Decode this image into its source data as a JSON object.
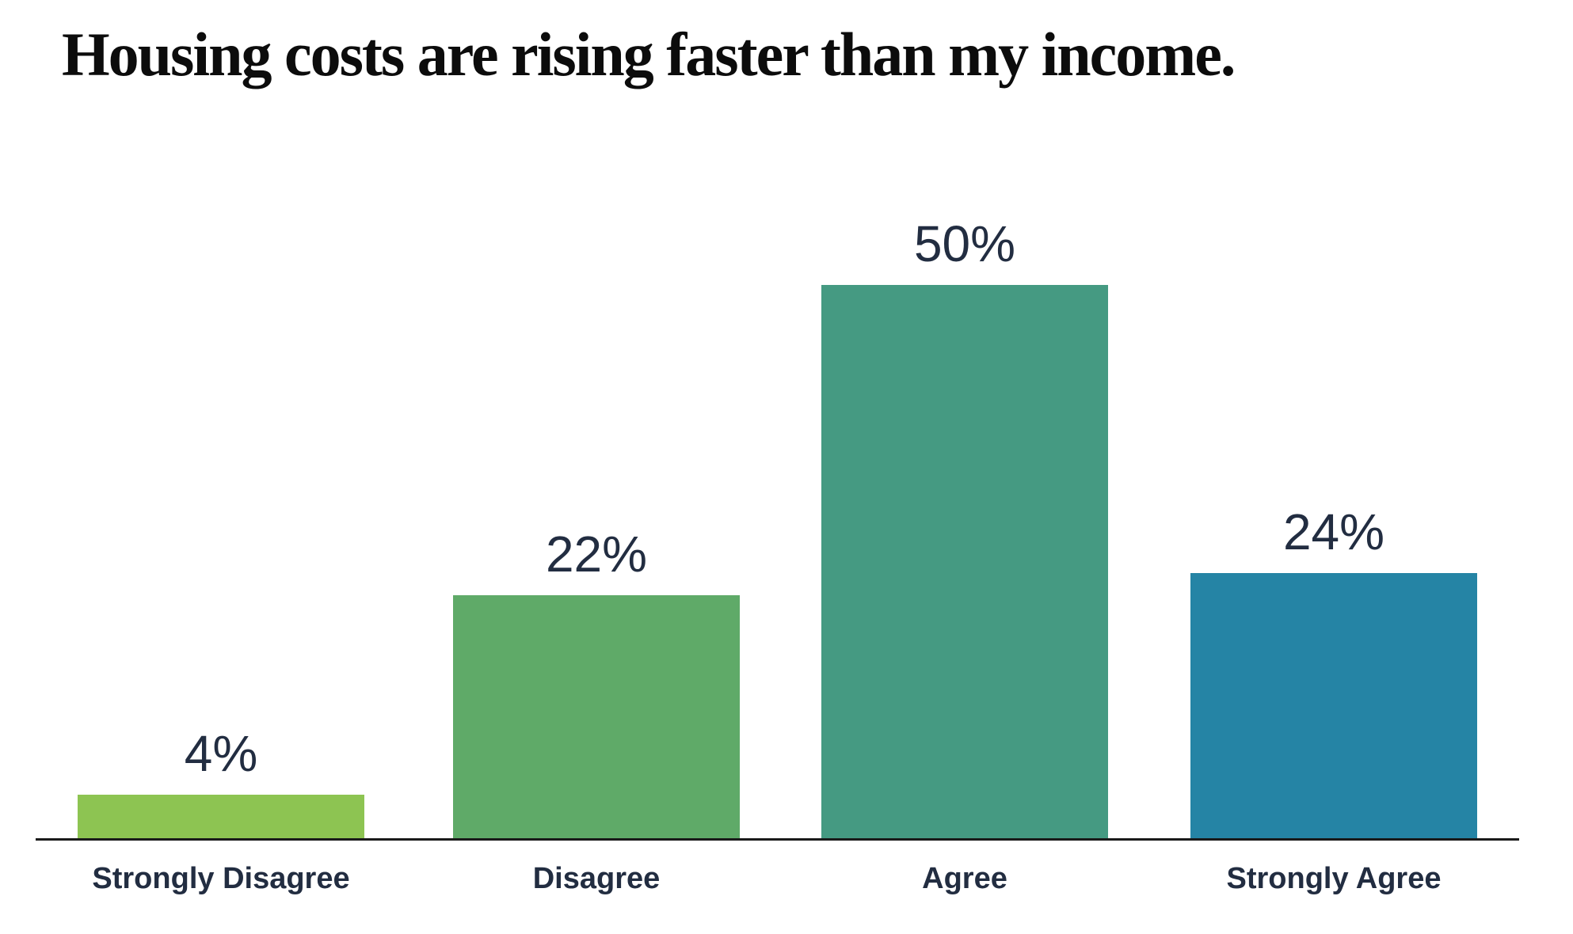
{
  "title": "Housing costs are rising faster than my income.",
  "chart_data": {
    "type": "bar",
    "title": "Housing costs are rising faster than my income.",
    "categories": [
      "Strongly Disagree",
      "Disagree",
      "Agree",
      "Strongly Agree"
    ],
    "values": [
      4,
      22,
      50,
      24
    ],
    "value_labels": [
      "4%",
      "22%",
      "50%",
      "24%"
    ],
    "bar_colors": [
      "#8DC452",
      "#5FAA68",
      "#459A82",
      "#2584A5"
    ],
    "xlabel": "",
    "ylabel": "",
    "ylim": [
      0,
      50
    ],
    "grid": false,
    "legend": false,
    "text_color": "#222D41",
    "title_color": "#0C0C0C",
    "axis_line_color": "#1A1A1A",
    "background_color": "#FFFFFF"
  }
}
